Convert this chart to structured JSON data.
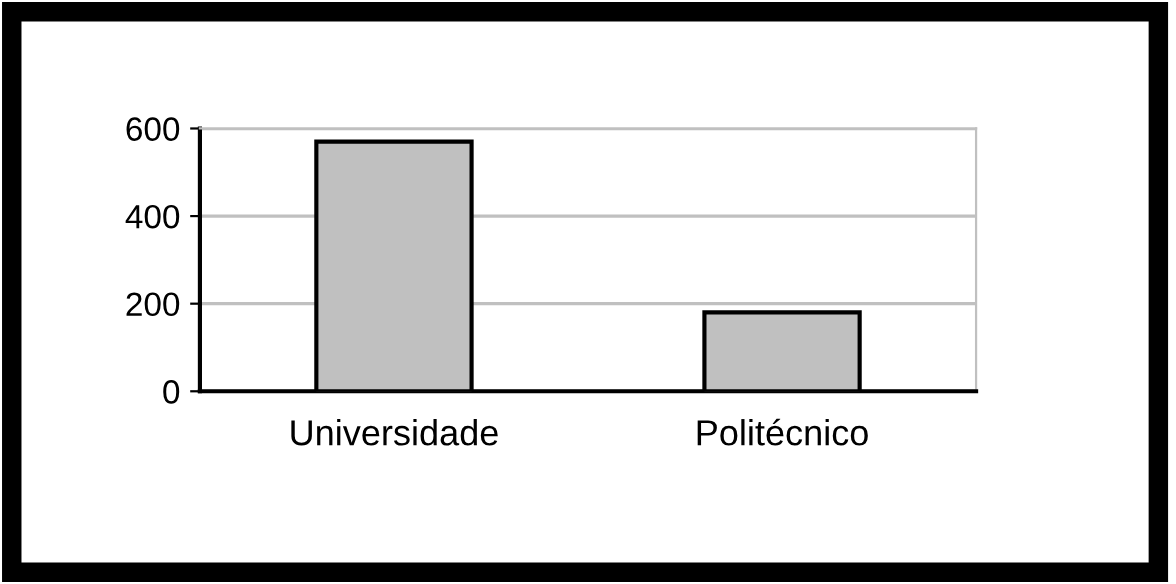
{
  "chart_data": {
    "type": "bar",
    "categories": [
      "Universidade",
      "Politécnico"
    ],
    "values": [
      570,
      180
    ],
    "color": "#c0c0c0",
    "ylim": [
      0,
      600
    ],
    "yticks": [
      0,
      200,
      400,
      600
    ],
    "grid": "y"
  }
}
